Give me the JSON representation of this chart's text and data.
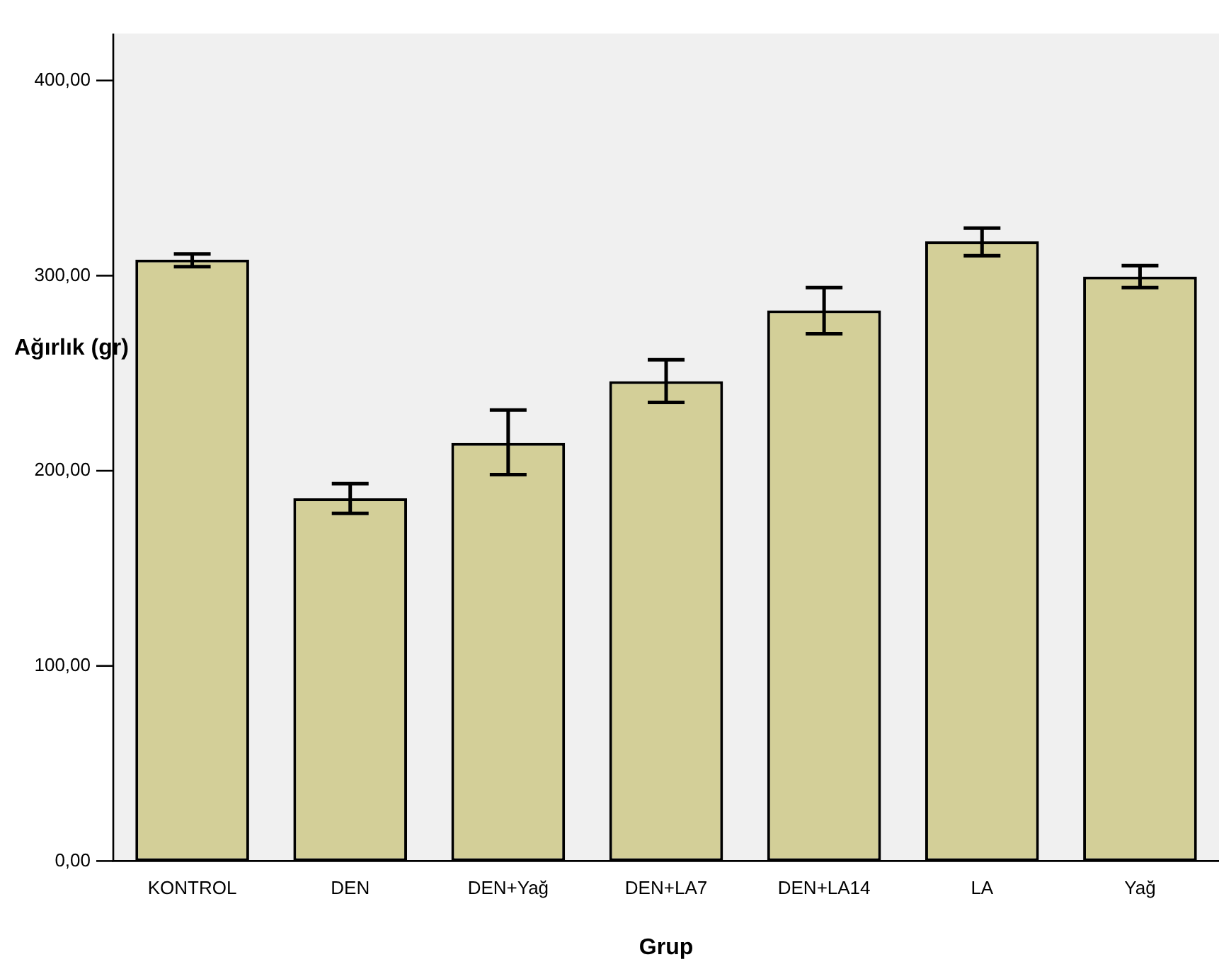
{
  "chart_data": {
    "type": "bar",
    "xlabel": "Grup",
    "ylabel": "Ağırlık (gr)",
    "categories": [
      "KONTROL",
      "DEN",
      "DEN+Yağ",
      "DEN+LA7",
      "DEN+LA14",
      "LA",
      "Yağ"
    ],
    "values": [
      308.2,
      185.9,
      214.3,
      245.9,
      282.2,
      317.6,
      299.5
    ],
    "errors": [
      [
        304.6,
        311.1
      ],
      [
        178.2,
        193.4
      ],
      [
        198.0,
        231.1
      ],
      [
        235.0,
        256.9
      ],
      [
        270.2,
        293.9
      ],
      [
        310.2,
        324.4
      ],
      [
        293.9,
        305.1
      ]
    ],
    "color": "#d3cf98",
    "ylim": [
      0,
      424
    ],
    "yticks": [
      {
        "value": 0,
        "label": "0,00"
      },
      {
        "value": 100,
        "label": "100,00"
      },
      {
        "value": 200,
        "label": "200,00"
      },
      {
        "value": 300,
        "label": "300,00"
      },
      {
        "value": 400,
        "label": "400,00"
      }
    ],
    "grid": false,
    "legend": false
  }
}
